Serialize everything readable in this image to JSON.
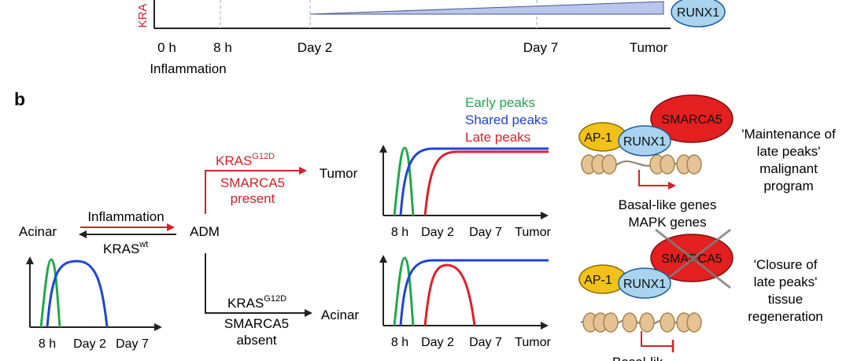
{
  "panel_a": {
    "axis_label_partial": "KRA",
    "timeline_labels": [
      "0 h",
      "8 h",
      "Day 2",
      "Day 7",
      "Tumor"
    ],
    "phase_label": "Inflammation",
    "runx1_label": "RUNX1"
  },
  "panel_b": {
    "panel_letter": "b",
    "legend": {
      "early": "Early peaks",
      "shared": "Shared peaks",
      "late": "Late peaks"
    },
    "colors": {
      "early": "#22a84a",
      "shared": "#1f45d6",
      "late": "#e0202a",
      "kras_red": "#d62027",
      "ap1_fill": "#f2c21b",
      "runx1_fill": "#a9d3ef",
      "smarca5_fill": "#e41f1f"
    },
    "left_states": {
      "acinar": "Acinar",
      "adm": "ADM",
      "inflammation": "Inflammation",
      "kras_wt_base": "KRAS",
      "kras_wt_sup": "wt"
    },
    "upper_branch": {
      "kras_base": "KRAS",
      "kras_sup": "G12D",
      "line2": "SMARCA5",
      "line3": "present",
      "outcome": "Tumor"
    },
    "lower_branch": {
      "kras_base": "KRAS",
      "kras_sup": "G12D",
      "line2": "SMARCA5",
      "line3": "absent",
      "outcome": "Acinar"
    },
    "plot_left_ticks": [
      "8 h",
      "Day 2",
      "Day 7"
    ],
    "plot_right_ticks": [
      "8 h",
      "Day 2",
      "Day 7",
      "Tumor"
    ],
    "protein_labels": {
      "ap1": "AP-1",
      "runx1": "RUNX1",
      "smarca5": "SMARCA5"
    },
    "upper_genes": [
      "Basal-like genes",
      "MAPK genes"
    ],
    "upper_quote": [
      "'Maintenance of",
      "late peaks'",
      "malignant",
      "program"
    ],
    "lower_quote": [
      "'Closure of",
      "late peaks'",
      "tissue",
      "regeneration"
    ],
    "lower_genes_partial": "Basal-lik"
  }
}
